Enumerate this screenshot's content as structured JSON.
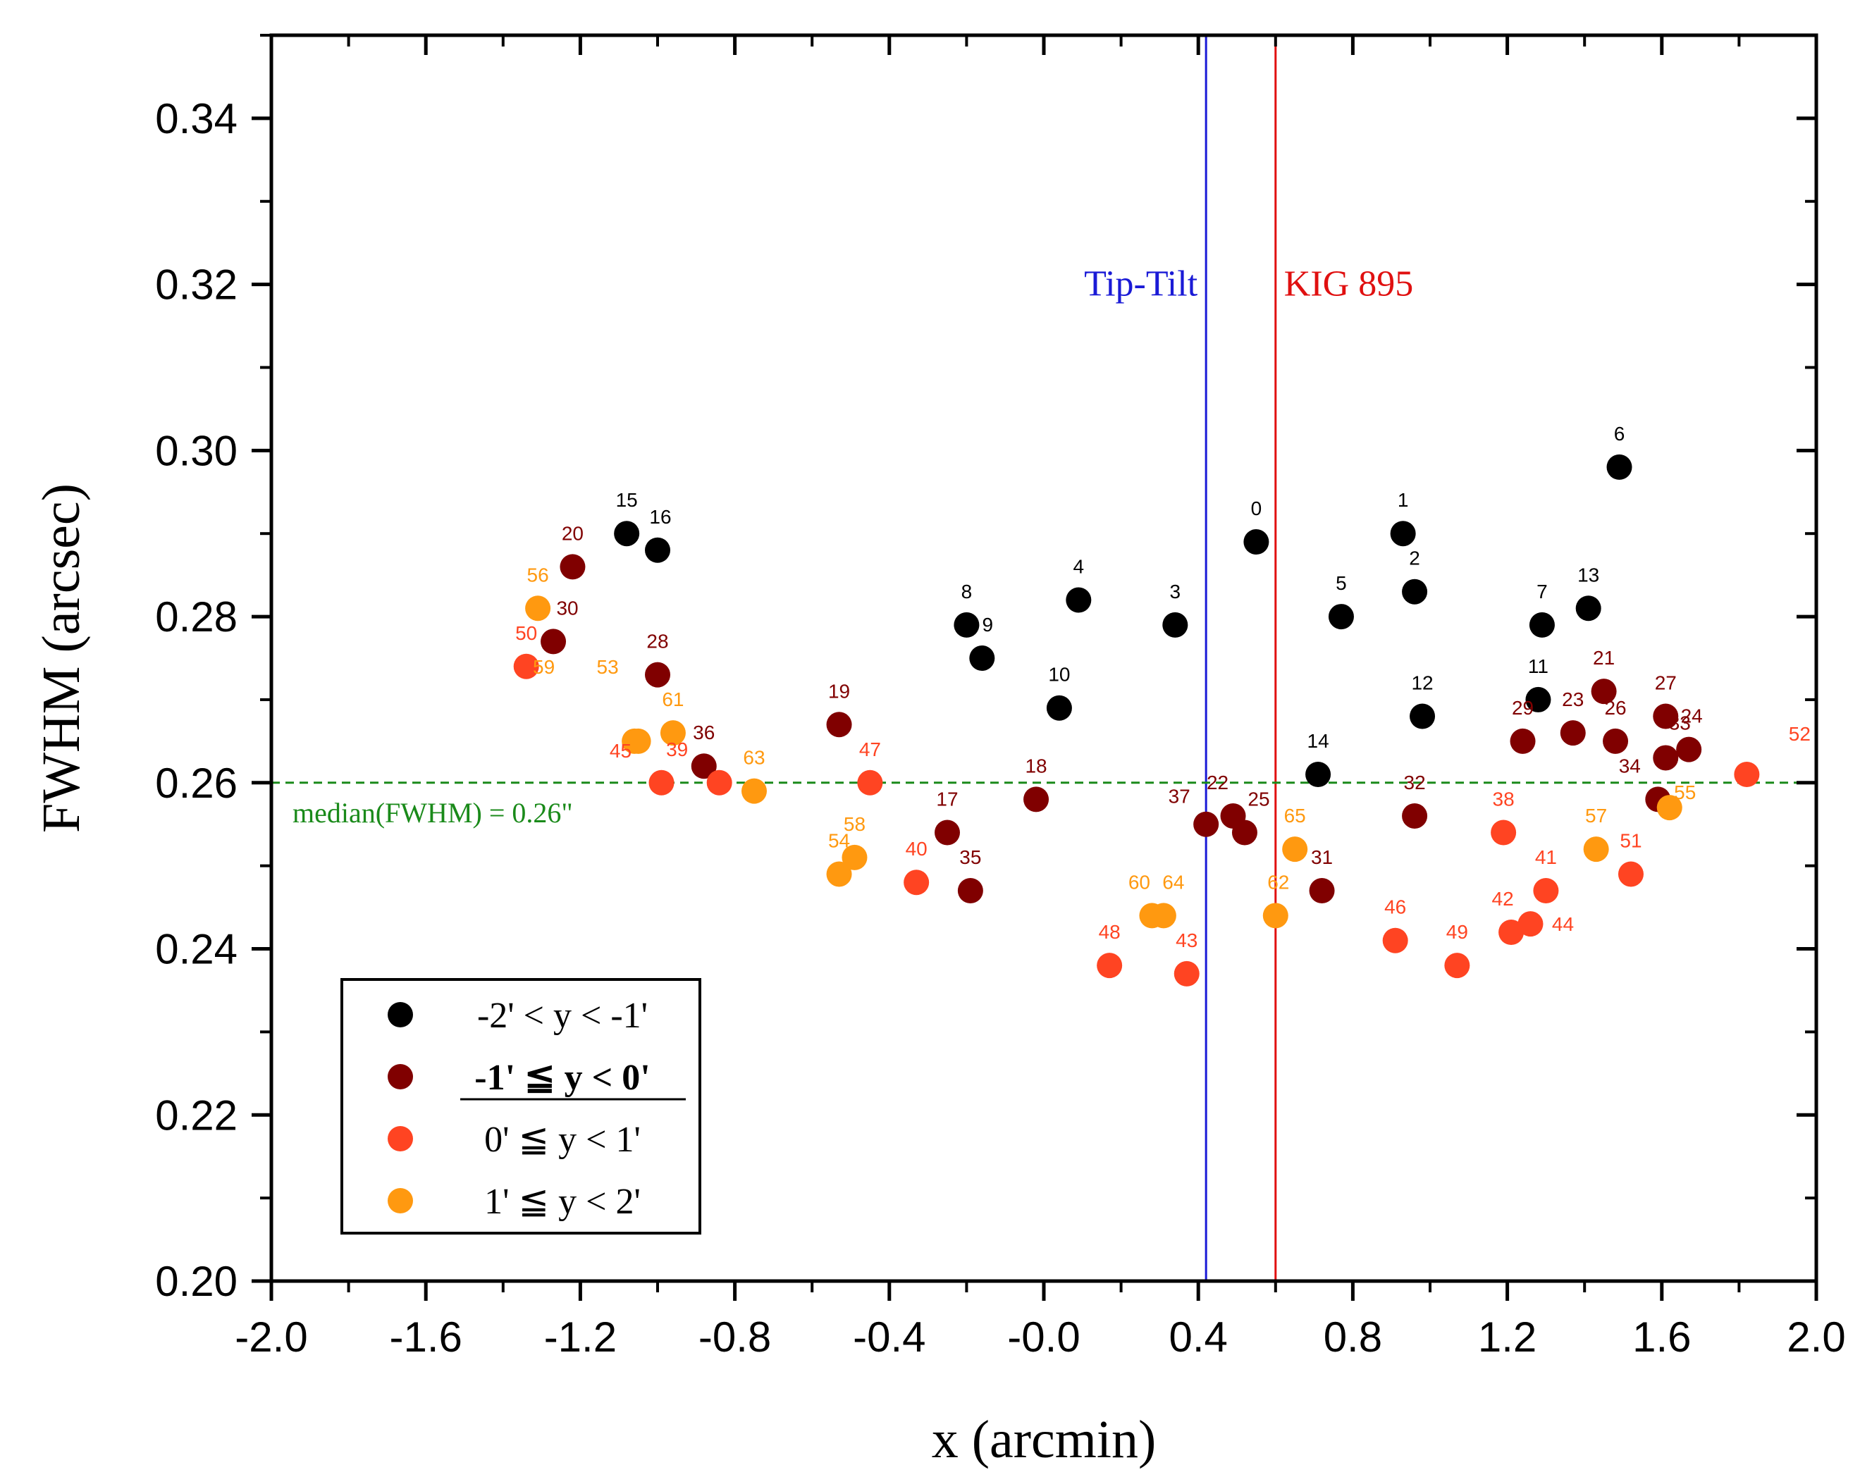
{
  "chart_data": {
    "type": "scatter",
    "xlabel": "x (arcmin)",
    "ylabel": "FWHM (arcsec)",
    "xlim": [
      -2.0,
      2.0
    ],
    "ylim": [
      0.2,
      0.35
    ],
    "x_ticks": [
      "-2.0",
      "-1.6",
      "-1.2",
      "-0.8",
      "-0.4",
      "-0.0",
      "0.4",
      "0.8",
      "1.2",
      "1.6",
      "2.0"
    ],
    "x_tick_values": [
      -2.0,
      -1.6,
      -1.2,
      -0.8,
      -0.4,
      0.0,
      0.4,
      0.8,
      1.2,
      1.6,
      2.0
    ],
    "y_ticks": [
      "0.20",
      "0.22",
      "0.24",
      "0.26",
      "0.28",
      "0.30",
      "0.32",
      "0.34"
    ],
    "y_tick_values": [
      0.2,
      0.22,
      0.24,
      0.26,
      0.28,
      0.3,
      0.32,
      0.34
    ],
    "vertical_lines": [
      {
        "x": 0.42,
        "label": "Tip-Tilt",
        "color": "#1a1ad6"
      },
      {
        "x": 0.6,
        "label": "KIG 895",
        "color": "#e01010"
      }
    ],
    "median_line": {
      "y": 0.26,
      "label": "median(FWHM) = 0.26\"",
      "color": "#1a8a1a"
    },
    "legend_position": "bottom-left",
    "series": [
      {
        "name": "-2' < y < -1'",
        "color": "#000000",
        "points": [
          {
            "id": "0",
            "x": 0.55,
            "y": 0.289
          },
          {
            "id": "1",
            "x": 0.93,
            "y": 0.29
          },
          {
            "id": "2",
            "x": 0.96,
            "y": 0.283
          },
          {
            "id": "3",
            "x": 0.34,
            "y": 0.279
          },
          {
            "id": "4",
            "x": 0.09,
            "y": 0.282
          },
          {
            "id": "5",
            "x": 0.77,
            "y": 0.28
          },
          {
            "id": "6",
            "x": 1.49,
            "y": 0.298
          },
          {
            "id": "7",
            "x": 1.29,
            "y": 0.279
          },
          {
            "id": "8",
            "x": -0.2,
            "y": 0.279
          },
          {
            "id": "9",
            "x": -0.16,
            "y": 0.275
          },
          {
            "id": "10",
            "x": 0.04,
            "y": 0.269
          },
          {
            "id": "11",
            "x": 1.28,
            "y": 0.27
          },
          {
            "id": "12",
            "x": 0.98,
            "y": 0.268
          },
          {
            "id": "13",
            "x": 1.41,
            "y": 0.281
          },
          {
            "id": "14",
            "x": 0.71,
            "y": 0.261
          },
          {
            "id": "15",
            "x": -1.08,
            "y": 0.29
          },
          {
            "id": "16",
            "x": -1.0,
            "y": 0.288
          }
        ]
      },
      {
        "name": "-1' ≦ y < 0'",
        "color": "#800000",
        "points": [
          {
            "id": "17",
            "x": -0.25,
            "y": 0.254
          },
          {
            "id": "18",
            "x": -0.02,
            "y": 0.258
          },
          {
            "id": "19",
            "x": -0.53,
            "y": 0.267
          },
          {
            "id": "20",
            "x": -1.22,
            "y": 0.286
          },
          {
            "id": "21",
            "x": 1.45,
            "y": 0.271
          },
          {
            "id": "22",
            "x": 0.49,
            "y": 0.256
          },
          {
            "id": "23",
            "x": 1.37,
            "y": 0.266
          },
          {
            "id": "24",
            "x": 1.67,
            "y": 0.264
          },
          {
            "id": "25",
            "x": 0.52,
            "y": 0.254
          },
          {
            "id": "26",
            "x": 1.48,
            "y": 0.265
          },
          {
            "id": "27",
            "x": 1.61,
            "y": 0.268
          },
          {
            "id": "28",
            "x": -1.0,
            "y": 0.273
          },
          {
            "id": "29",
            "x": 1.24,
            "y": 0.265
          },
          {
            "id": "30",
            "x": -1.27,
            "y": 0.277
          },
          {
            "id": "31",
            "x": 0.72,
            "y": 0.247
          },
          {
            "id": "32",
            "x": 0.96,
            "y": 0.256
          },
          {
            "id": "33",
            "x": 1.61,
            "y": 0.263
          },
          {
            "id": "34",
            "x": 1.59,
            "y": 0.258
          },
          {
            "id": "35",
            "x": -0.19,
            "y": 0.247
          },
          {
            "id": "36",
            "x": -0.88,
            "y": 0.262
          },
          {
            "id": "37",
            "x": 0.42,
            "y": 0.255
          }
        ]
      },
      {
        "name": "0' ≦ y < 1'",
        "color": "#ff4422",
        "points": [
          {
            "id": "38",
            "x": 1.19,
            "y": 0.254
          },
          {
            "id": "39",
            "x": -0.84,
            "y": 0.26
          },
          {
            "id": "40",
            "x": -0.33,
            "y": 0.248
          },
          {
            "id": "41",
            "x": 1.3,
            "y": 0.247
          },
          {
            "id": "42",
            "x": 1.21,
            "y": 0.242
          },
          {
            "id": "43",
            "x": 0.37,
            "y": 0.237
          },
          {
            "id": "44",
            "x": 1.26,
            "y": 0.243
          },
          {
            "id": "45",
            "x": -0.99,
            "y": 0.26
          },
          {
            "id": "46",
            "x": 0.91,
            "y": 0.241
          },
          {
            "id": "47",
            "x": -0.45,
            "y": 0.26
          },
          {
            "id": "48",
            "x": 0.17,
            "y": 0.238
          },
          {
            "id": "49",
            "x": 1.07,
            "y": 0.238
          },
          {
            "id": "50",
            "x": -1.34,
            "y": 0.274
          },
          {
            "id": "51",
            "x": 1.52,
            "y": 0.249
          },
          {
            "id": "52",
            "x": 1.82,
            "y": 0.261
          }
        ]
      },
      {
        "name": "1' ≦ y < 2'",
        "color": "#ff9910",
        "points": [
          {
            "id": "53",
            "x": -1.06,
            "y": 0.265
          },
          {
            "id": "54",
            "x": -0.53,
            "y": 0.249
          },
          {
            "id": "55",
            "x": 1.62,
            "y": 0.257
          },
          {
            "id": "56",
            "x": -1.31,
            "y": 0.281
          },
          {
            "id": "57",
            "x": 1.43,
            "y": 0.252
          },
          {
            "id": "58",
            "x": -0.49,
            "y": 0.251
          },
          {
            "id": "59",
            "x": -1.05,
            "y": 0.265
          },
          {
            "id": "60",
            "x": 0.28,
            "y": 0.244
          },
          {
            "id": "61",
            "x": -0.96,
            "y": 0.266
          },
          {
            "id": "62",
            "x": 0.6,
            "y": 0.244
          },
          {
            "id": "63",
            "x": -0.75,
            "y": 0.259
          },
          {
            "id": "64",
            "x": 0.31,
            "y": 0.244
          },
          {
            "id": "65",
            "x": 0.65,
            "y": 0.252
          }
        ]
      }
    ]
  }
}
